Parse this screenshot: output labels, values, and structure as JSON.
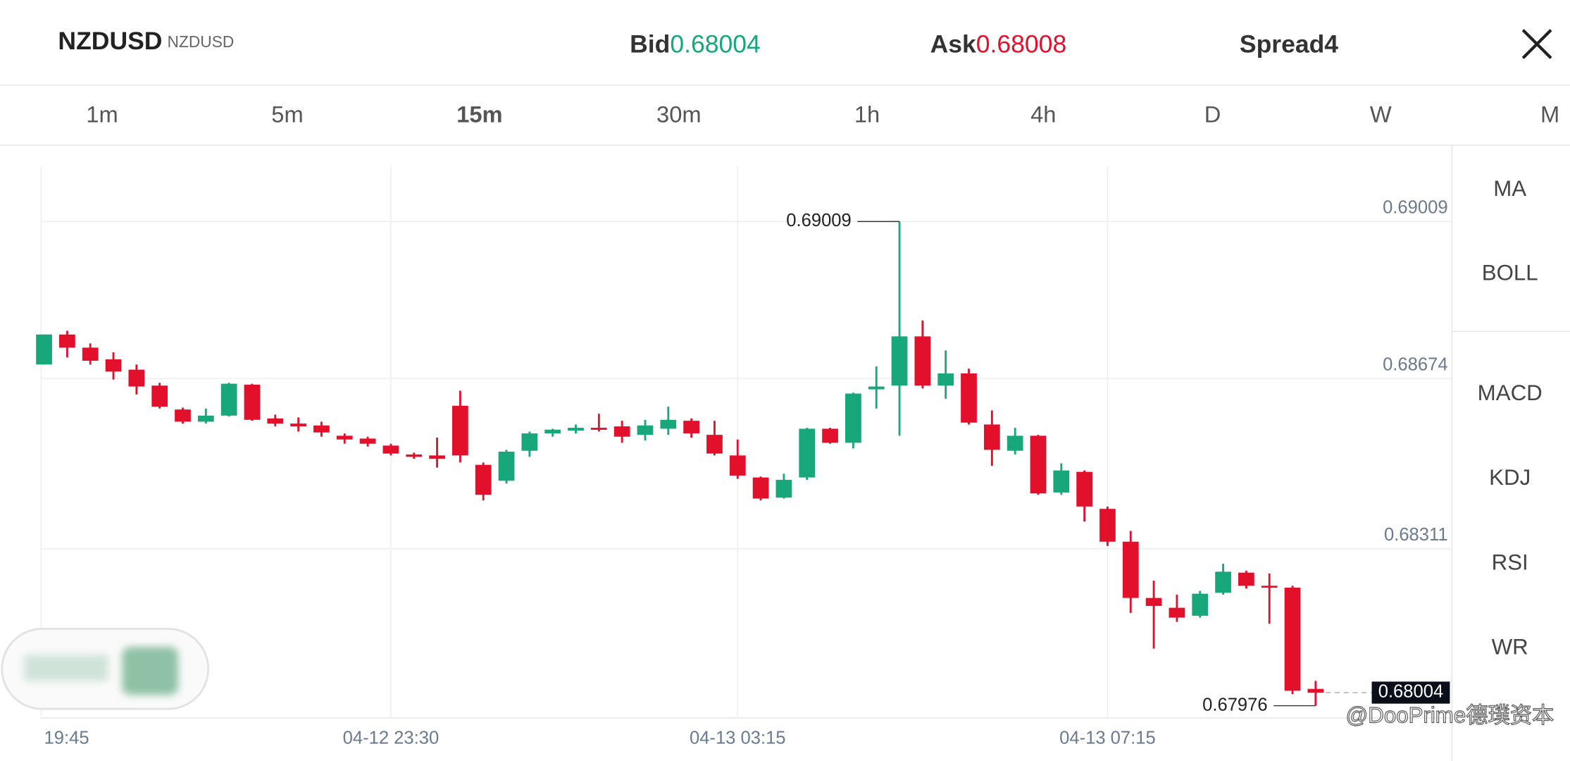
{
  "header": {
    "symbol": "NZDUSD",
    "symbol_sub": "NZDUSD",
    "bid_label": "Bid",
    "bid": 0.68004,
    "ask_label": "Ask",
    "ask": 0.68008,
    "spread_label": "Spread",
    "spread": 4
  },
  "tabs": [
    "1m",
    "5m",
    "15m",
    "30m",
    "1h",
    "4h",
    "D",
    "W",
    "M"
  ],
  "active_tab": "15m",
  "indicators_main": [
    "MA",
    "BOLL"
  ],
  "indicators_sub": [
    "MACD",
    "KDJ",
    "RSI",
    "WR"
  ],
  "watermark": "@DooPrime德璞资本",
  "chart_data": {
    "type": "candlestick",
    "x": [
      "19:45",
      null,
      null,
      null,
      null,
      null,
      null,
      null,
      null,
      null,
      null,
      null,
      null,
      null,
      null,
      "04-12 23:30",
      null,
      null,
      null,
      null,
      null,
      null,
      null,
      null,
      null,
      null,
      null,
      null,
      null,
      null,
      "04-13 03:15",
      null,
      null,
      null,
      null,
      null,
      null,
      null,
      null,
      null,
      null,
      null,
      null,
      null,
      null,
      null,
      "04-13 07:15",
      null,
      null,
      null,
      null,
      null,
      null,
      null,
      null,
      null
    ],
    "open": [
      0.68704,
      0.68768,
      0.6874,
      0.68715,
      0.68693,
      0.68659,
      0.68608,
      0.68582,
      0.68595,
      0.68661,
      0.68589,
      0.68578,
      0.68574,
      0.68552,
      0.68546,
      0.68531,
      0.68512,
      0.6851,
      0.68616,
      0.6849,
      0.68456,
      0.6852,
      0.68557,
      0.68563,
      0.68569,
      0.68572,
      0.68554,
      0.68567,
      0.68584,
      0.68554,
      0.6851,
      0.68463,
      0.6842,
      0.68463,
      0.68567,
      0.68537,
      0.68651,
      0.68659,
      0.68764,
      0.68659,
      0.68685,
      0.68576,
      0.6852,
      0.68552,
      0.68431,
      0.68475,
      0.68396,
      0.68326,
      0.68206,
      0.68185,
      0.68168,
      0.68217,
      0.6826,
      0.68232,
      0.68228,
      0.68012
    ],
    "high": [
      0.68768,
      0.68776,
      0.68749,
      0.6873,
      0.68704,
      0.68665,
      0.68612,
      0.6861,
      0.68665,
      0.68663,
      0.68597,
      0.68591,
      0.68582,
      0.68557,
      0.6855,
      0.68535,
      0.68516,
      0.68548,
      0.68648,
      0.68495,
      0.68522,
      0.68561,
      0.68567,
      0.68576,
      0.68599,
      0.68584,
      0.68586,
      0.68614,
      0.68589,
      0.68584,
      0.68544,
      0.68465,
      0.68471,
      0.68569,
      0.68569,
      0.68644,
      0.687,
      0.69009,
      0.68798,
      0.68734,
      0.68695,
      0.68606,
      0.68569,
      0.68554,
      0.68493,
      0.68478,
      0.68401,
      0.68349,
      0.68243,
      0.68213,
      0.68221,
      0.68279,
      0.68264,
      0.68258,
      0.68232,
      0.68029
    ],
    "low": [
      0.68704,
      0.68719,
      0.68704,
      0.68672,
      0.6864,
      0.6861,
      0.68578,
      0.68578,
      0.68593,
      0.68584,
      0.68572,
      0.68561,
      0.6855,
      0.68535,
      0.68529,
      0.6851,
      0.68503,
      0.68484,
      0.68495,
      0.68414,
      0.6845,
      0.68507,
      0.6855,
      0.68557,
      0.68561,
      0.68537,
      0.68542,
      0.68554,
      0.68548,
      0.6851,
      0.6846,
      0.68414,
      0.68418,
      0.68458,
      0.68535,
      0.68525,
      0.6861,
      0.68552,
      0.68653,
      0.68631,
      0.68576,
      0.68488,
      0.68512,
      0.68426,
      0.68426,
      0.68369,
      0.68317,
      0.68174,
      0.68098,
      0.68155,
      0.68164,
      0.68213,
      0.68226,
      0.68151,
      0.68001,
      0.67976
    ],
    "close": [
      0.68768,
      0.6874,
      0.68712,
      0.68689,
      0.68657,
      0.68614,
      0.68582,
      0.68595,
      0.68663,
      0.68586,
      0.68578,
      0.68572,
      0.68559,
      0.68544,
      0.68535,
      0.68514,
      0.68507,
      0.68503,
      0.6851,
      0.68426,
      0.68518,
      0.68557,
      0.68565,
      0.68569,
      0.68565,
      0.6855,
      0.68574,
      0.68586,
      0.68557,
      0.68514,
      0.68467,
      0.68418,
      0.68458,
      0.68567,
      0.68537,
      0.68642,
      0.68657,
      0.68764,
      0.68659,
      0.68685,
      0.6858,
      0.68522,
      0.68552,
      0.68429,
      0.68478,
      0.68401,
      0.68326,
      0.68206,
      0.68189,
      0.68164,
      0.68215,
      0.68262,
      0.68232,
      0.68228,
      0.68008,
      0.68004
    ],
    "ylim": [
      0.6795,
      0.69127
    ],
    "yticks": [
      0.69009,
      0.68674,
      0.68311
    ],
    "grid": true,
    "up_color": "#17a77a",
    "down_color": "#e3102c",
    "high_label": 0.69009,
    "low_label": 0.67976,
    "last_price": 0.68004
  }
}
